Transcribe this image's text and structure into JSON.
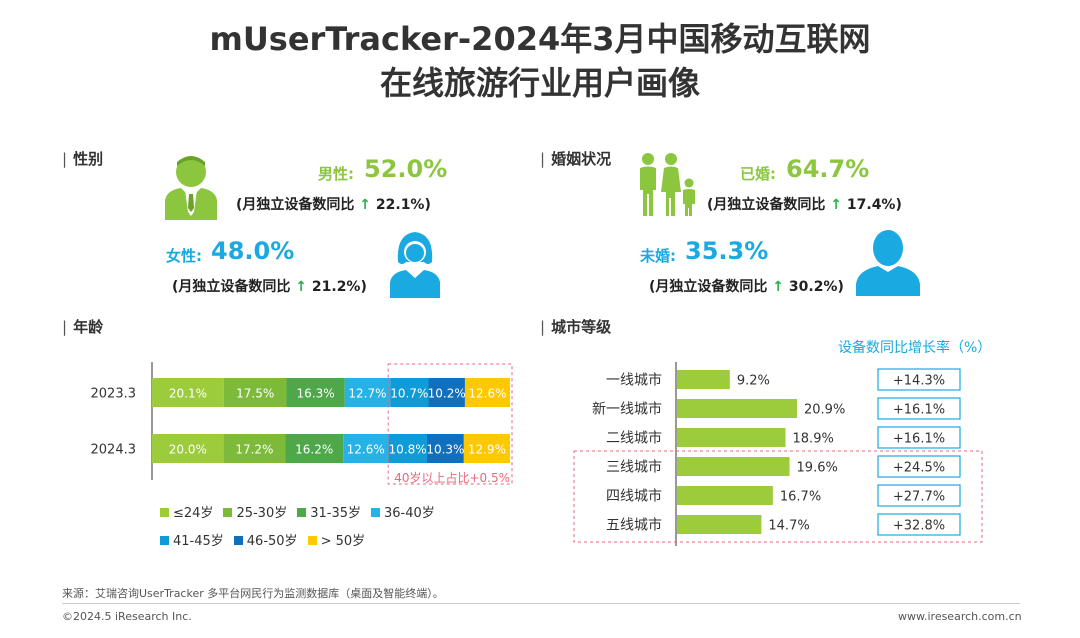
{
  "title": {
    "line1": "mUserTracker-2024年3月中国移动互联网",
    "line2": "在线旅游行业用户画像"
  },
  "gender": {
    "section": "性别",
    "male_label": "男性:",
    "male_value": "52.0%",
    "male_yoy_prefix": "(月独立设备数同比",
    "male_yoy_value": "22.1%)",
    "female_label": "女性:",
    "female_value": "48.0%",
    "female_yoy_prefix": "(月独立设备数同比",
    "female_yoy_value": "21.2%)",
    "arrow": "↑",
    "colors": {
      "male": "#8cc63f",
      "female": "#1aa9e1"
    },
    "icons": [
      "male-user-icon",
      "female-user-icon"
    ]
  },
  "marriage": {
    "section": "婚姻状况",
    "married_label": "已婚:",
    "married_value": "64.7%",
    "married_yoy_prefix": "(月独立设备数同比",
    "married_yoy_value": "17.4%)",
    "single_label": "未婚:",
    "single_value": "35.3%",
    "single_yoy_prefix": "(月独立设备数同比",
    "single_yoy_value": "30.2%)",
    "arrow": "↑",
    "icons": [
      "family-icon",
      "single-person-icon"
    ]
  },
  "age_section": "年龄",
  "city_section": "城市等级",
  "chart_data": [
    {
      "type": "bar",
      "stacked": true,
      "orientation": "horizontal",
      "categories": [
        "2023.3",
        "2024.3"
      ],
      "series": [
        {
          "name": "≤24岁",
          "values": [
            20.1,
            20.0
          ],
          "labels": [
            "20.1%",
            "20.0%"
          ],
          "color": "#9ccb3b"
        },
        {
          "name": "25-30岁",
          "values": [
            17.5,
            17.2
          ],
          "labels": [
            "17.5%",
            "17.2%"
          ],
          "color": "#7dba3a"
        },
        {
          "name": "31-35岁",
          "values": [
            16.3,
            16.2
          ],
          "labels": [
            "16.3%",
            "16.2%"
          ],
          "color": "#4ea84a"
        },
        {
          "name": "36-40岁",
          "values": [
            12.7,
            12.6
          ],
          "labels": [
            "12.7%",
            "12.6%"
          ],
          "color": "#26b2e6"
        },
        {
          "name": "41-45岁",
          "values": [
            10.7,
            10.8
          ],
          "labels": [
            "10.7%",
            "10.8%"
          ],
          "color": "#0f9ad8"
        },
        {
          "name": "46-50岁",
          "values": [
            10.2,
            10.3
          ],
          "labels": [
            "10.2%",
            "10.3%"
          ],
          "color": "#1070bd"
        },
        {
          "name": "> 50岁",
          "values": [
            12.6,
            12.9
          ],
          "labels": [
            "12.6%",
            "12.9%"
          ],
          "color": "#ffc800"
        }
      ],
      "annotation": "40岁以上占比+0.5%",
      "annotation_color": "#e8697d",
      "legend_position": "bottom"
    },
    {
      "type": "bar",
      "orientation": "horizontal",
      "categories": [
        "一线城市",
        "新一线城市",
        "二线城市",
        "三线城市",
        "四线城市",
        "五线城市"
      ],
      "values": [
        9.2,
        20.9,
        18.9,
        19.6,
        16.7,
        14.7
      ],
      "value_labels": [
        "9.2%",
        "20.9%",
        "18.9%",
        "19.6%",
        "16.7%",
        "14.7%"
      ],
      "bar_color": "#9ccb3b",
      "growth_header": "设备数同比增长率（%）",
      "growth": [
        14.3,
        16.1,
        16.1,
        24.5,
        27.7,
        32.8
      ],
      "growth_labels": [
        "+14.3%",
        "+16.1%",
        "+16.1%",
        "+24.5%",
        "+27.7%",
        "+32.8%"
      ],
      "growth_color": "#1aa9e1"
    }
  ],
  "footer": {
    "source": "来源：艾瑞咨询UserTracker 多平台网民行为监测数据库（桌面及智能终端）。",
    "copyright": "©2024.5 iResearch Inc.",
    "website": "www.iresearch.com.cn"
  }
}
